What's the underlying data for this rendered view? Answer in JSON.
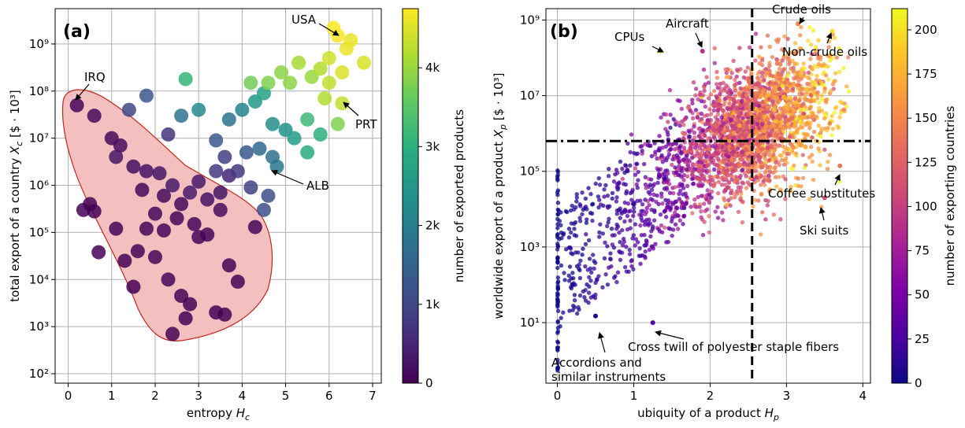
{
  "chart_data": [
    {
      "panel_label": "(a)",
      "type": "scatter",
      "xlabel": "entropy",
      "xlabel_symbol": "H",
      "xlabel_sub": "c",
      "ylabel": "total export of a country",
      "ylabel_symbol": "X",
      "ylabel_sub": "c",
      "ylabel_unit": "[$ · 10³]",
      "y_scale": "log",
      "xlim": [
        -0.3,
        7.2
      ],
      "ylim_log10": [
        1.8,
        9.75
      ],
      "x_ticks": [
        "0",
        "1",
        "2",
        "3",
        "4",
        "5",
        "6",
        "7"
      ],
      "y_ticks": [
        "10²",
        "10³",
        "10⁴",
        "10⁵",
        "10⁶",
        "10⁷",
        "10⁸",
        "10⁹"
      ],
      "grid": true,
      "colorbar": {
        "label": "number of exported products",
        "ticks": [
          "0",
          "1k",
          "2k",
          "3k",
          "4k"
        ],
        "range": [
          0,
          4750
        ],
        "colormap": "viridis"
      },
      "highlight_region": {
        "fill": "#f4c0bf",
        "stroke": "#c0261c"
      },
      "annotations": [
        "IRQ",
        "USA",
        "PRT",
        "ALB"
      ],
      "points": [
        {
          "x": 0.2,
          "y": 50000000,
          "c": 60
        },
        {
          "x": 0.6,
          "y": 30000000,
          "c": 100
        },
        {
          "x": 1.0,
          "y": 10000000,
          "c": 120
        },
        {
          "x": 1.2,
          "y": 7000000,
          "c": 150
        },
        {
          "x": 1.5,
          "y": 2500000,
          "c": 180
        },
        {
          "x": 1.8,
          "y": 2000000,
          "c": 200
        },
        {
          "x": 2.1,
          "y": 1800000,
          "c": 250
        },
        {
          "x": 2.4,
          "y": 1000000,
          "c": 300
        },
        {
          "x": 2.8,
          "y": 700000,
          "c": 350
        },
        {
          "x": 3.2,
          "y": 500000,
          "c": 200
        },
        {
          "x": 3.5,
          "y": 300000,
          "c": 150
        },
        {
          "x": 1.1,
          "y": 4000000,
          "c": 250
        },
        {
          "x": 0.5,
          "y": 400000,
          "c": 40
        },
        {
          "x": 0.35,
          "y": 300000,
          "c": 30
        },
        {
          "x": 0.6,
          "y": 280000,
          "c": 30
        },
        {
          "x": 0.7,
          "y": 38000,
          "c": 20
        },
        {
          "x": 1.1,
          "y": 120000,
          "c": 40
        },
        {
          "x": 1.3,
          "y": 25000,
          "c": 40
        },
        {
          "x": 1.6,
          "y": 40000,
          "c": 30
        },
        {
          "x": 1.5,
          "y": 7000,
          "c": 20
        },
        {
          "x": 2.0,
          "y": 30000,
          "c": 60
        },
        {
          "x": 2.3,
          "y": 10000,
          "c": 50
        },
        {
          "x": 2.6,
          "y": 4500,
          "c": 40
        },
        {
          "x": 2.8,
          "y": 3000,
          "c": 40
        },
        {
          "x": 2.4,
          "y": 700,
          "c": 10
        },
        {
          "x": 2.7,
          "y": 1500,
          "c": 20
        },
        {
          "x": 3.4,
          "y": 2000,
          "c": 20
        },
        {
          "x": 3.6,
          "y": 1800,
          "c": 20
        },
        {
          "x": 3.7,
          "y": 20000,
          "c": 40
        },
        {
          "x": 3.9,
          "y": 9000,
          "c": 30
        },
        {
          "x": 4.3,
          "y": 130000,
          "c": 60
        },
        {
          "x": 2.2,
          "y": 110000,
          "c": 60
        },
        {
          "x": 1.8,
          "y": 120000,
          "c": 60
        },
        {
          "x": 3.0,
          "y": 80000,
          "c": 60
        },
        {
          "x": 2.0,
          "y": 250000,
          "c": 80
        },
        {
          "x": 2.5,
          "y": 200000,
          "c": 80
        },
        {
          "x": 2.9,
          "y": 150000,
          "c": 60
        },
        {
          "x": 3.2,
          "y": 90000,
          "c": 60
        },
        {
          "x": 1.7,
          "y": 800000,
          "c": 100
        },
        {
          "x": 2.2,
          "y": 600000,
          "c": 120
        },
        {
          "x": 2.6,
          "y": 400000,
          "c": 120
        },
        {
          "x": 3.0,
          "y": 1200000,
          "c": 300
        },
        {
          "x": 3.5,
          "y": 700000,
          "c": 250
        },
        {
          "x": 3.7,
          "y": 1600000,
          "c": 500
        },
        {
          "x": 3.9,
          "y": 2000000,
          "c": 800
        },
        {
          "x": 4.2,
          "y": 900000,
          "c": 900
        },
        {
          "x": 4.5,
          "y": 300000,
          "c": 1100
        },
        {
          "x": 4.6,
          "y": 600000,
          "c": 1100
        },
        {
          "x": 4.1,
          "y": 5000000,
          "c": 1300
        },
        {
          "x": 4.4,
          "y": 6000000,
          "c": 1600
        },
        {
          "x": 4.7,
          "y": 4000000,
          "c": 1800
        },
        {
          "x": 4.8,
          "y": 2500000,
          "c": 1900
        },
        {
          "x": 3.6,
          "y": 4000000,
          "c": 900
        },
        {
          "x": 3.4,
          "y": 2000000,
          "c": 800
        },
        {
          "x": 1.4,
          "y": 40000000,
          "c": 1000
        },
        {
          "x": 1.8,
          "y": 80000000,
          "c": 1300
        },
        {
          "x": 2.3,
          "y": 12000000,
          "c": 700
        },
        {
          "x": 2.6,
          "y": 30000000,
          "c": 1800
        },
        {
          "x": 2.7,
          "y": 180000000,
          "c": 3100
        },
        {
          "x": 3.0,
          "y": 40000000,
          "c": 2200
        },
        {
          "x": 3.4,
          "y": 9000000,
          "c": 1300
        },
        {
          "x": 3.7,
          "y": 25000000,
          "c": 1800
        },
        {
          "x": 4.0,
          "y": 40000000,
          "c": 2100
        },
        {
          "x": 4.3,
          "y": 60000000,
          "c": 2500
        },
        {
          "x": 4.5,
          "y": 90000000,
          "c": 2700
        },
        {
          "x": 4.7,
          "y": 20000000,
          "c": 2300
        },
        {
          "x": 5.0,
          "y": 15000000,
          "c": 2400
        },
        {
          "x": 5.2,
          "y": 10000000,
          "c": 2600
        },
        {
          "x": 5.5,
          "y": 25000000,
          "c": 3200
        },
        {
          "x": 5.8,
          "y": 12000000,
          "c": 3000
        },
        {
          "x": 5.5,
          "y": 5000000,
          "c": 2900
        },
        {
          "x": 4.2,
          "y": 150000000,
          "c": 3700
        },
        {
          "x": 4.6,
          "y": 150000000,
          "c": 3800
        },
        {
          "x": 4.9,
          "y": 250000000,
          "c": 3900
        },
        {
          "x": 5.1,
          "y": 150000000,
          "c": 3900
        },
        {
          "x": 5.3,
          "y": 400000000,
          "c": 4100
        },
        {
          "x": 5.6,
          "y": 200000000,
          "c": 4000
        },
        {
          "x": 5.8,
          "y": 300000000,
          "c": 4200
        },
        {
          "x": 6.0,
          "y": 500000000,
          "c": 4400
        },
        {
          "x": 6.2,
          "y": 1500000000,
          "c": 4700
        },
        {
          "x": 6.3,
          "y": 250000000,
          "c": 4500
        },
        {
          "x": 6.4,
          "y": 800000000,
          "c": 4600
        },
        {
          "x": 6.5,
          "y": 1200000000,
          "c": 4600
        },
        {
          "x": 6.8,
          "y": 400000000,
          "c": 4500
        },
        {
          "x": 6.3,
          "y": 55000000,
          "c": 4300
        },
        {
          "x": 6.0,
          "y": 150000000,
          "c": 4300
        },
        {
          "x": 5.9,
          "y": 70000000,
          "c": 4200
        },
        {
          "x": 6.1,
          "y": 2200000000,
          "c": 4750
        },
        {
          "x": 6.2,
          "y": 20000000,
          "c": 3800
        }
      ]
    },
    {
      "panel_label": "(b)",
      "type": "scatter",
      "xlabel": "ubiquity of a product",
      "xlabel_symbol": "H",
      "xlabel_sub": "p",
      "ylabel": "worldwide export of a product",
      "ylabel_symbol": "X",
      "ylabel_sub": "p",
      "ylabel_unit": "[$ · 10³]",
      "y_scale": "log",
      "xlim": [
        -0.15,
        4.1
      ],
      "ylim_log10": [
        -0.6,
        9.3
      ],
      "x_ticks": [
        "0",
        "1",
        "2",
        "3",
        "4"
      ],
      "y_ticks": [
        "10¹",
        "10³",
        "10⁵",
        "10⁷",
        "10⁹"
      ],
      "grid": true,
      "threshold_lines": {
        "vertical_x": 2.55,
        "horizontal_log10": 5.8
      },
      "colorbar": {
        "label": "number of exporting countries",
        "ticks": [
          "0",
          "25",
          "50",
          "75",
          "100",
          "125",
          "150",
          "175",
          "200"
        ],
        "range": [
          0,
          212
        ],
        "colormap": "plasma"
      },
      "annotations": [
        "Crude oils",
        "Aircraft",
        "CPUs",
        "Non-crude oils",
        "Coffee substitutes",
        "Ski suits",
        "Cross twill of polyester staple fibers",
        "Accordions and similar instruments"
      ],
      "points_note": "dense cloud of ~5000 products; drawn as sampled cloud",
      "points": [
        {
          "x": 3.15,
          "y": 800000000,
          "c": 150
        },
        {
          "x": 1.9,
          "y": 150000000,
          "c": 90
        },
        {
          "x": 1.35,
          "y": 150000000,
          "c": 200
        },
        {
          "x": 3.6,
          "y": 500000000,
          "c": 200
        },
        {
          "x": 3.7,
          "y": 140000,
          "c": 140
        },
        {
          "x": 3.5,
          "y": 20000,
          "c": 110
        },
        {
          "x": 1.25,
          "y": 10,
          "c": 30
        },
        {
          "x": 0.5,
          "y": 15,
          "c": 10
        }
      ]
    }
  ]
}
